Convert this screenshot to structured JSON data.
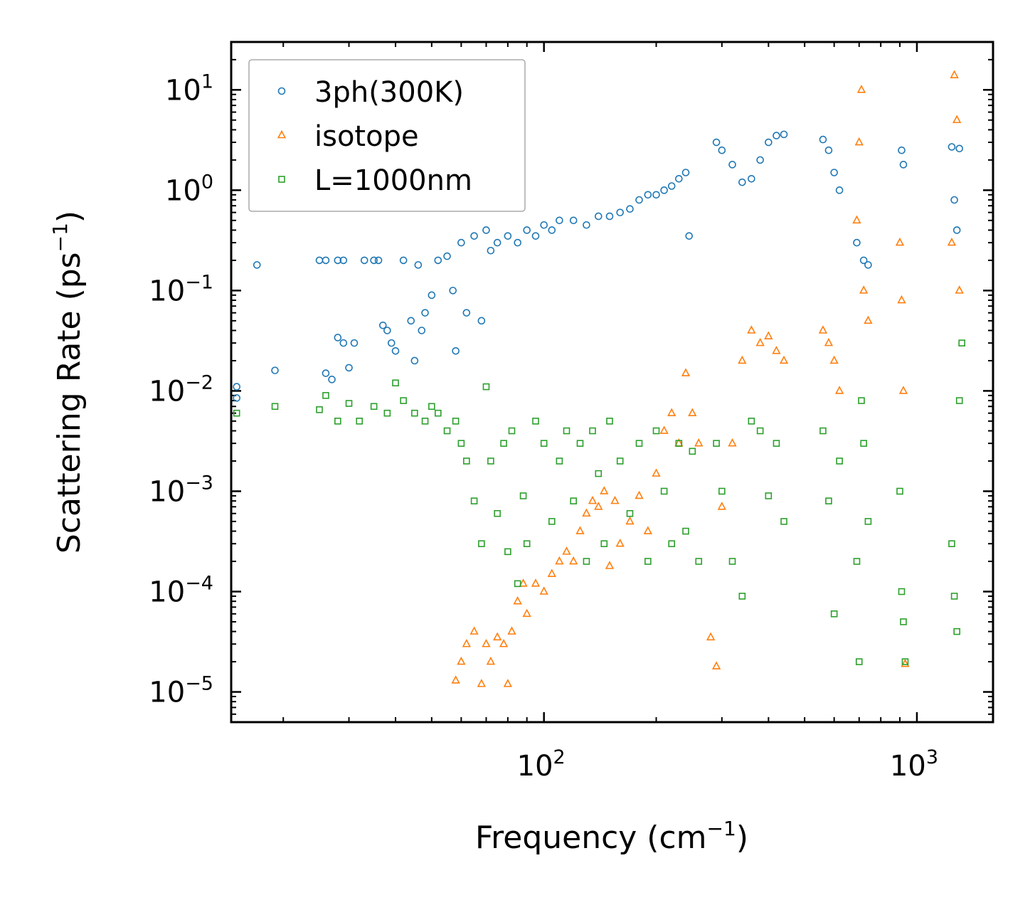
{
  "chart_data": {
    "type": "scatter",
    "title": "",
    "xlabel": "Frequency (cm",
    "xlabel_sup": "−1",
    "xlabel_tail": ")",
    "ylabel": "Scattering Rate (ps",
    "ylabel_sup": "−1",
    "ylabel_tail": ")",
    "xscale": "log",
    "yscale": "log",
    "xlim": [
      14.5,
      1600
    ],
    "ylim": [
      5e-06,
      30
    ],
    "x_ticks": [
      {
        "value": 100,
        "base": "10",
        "exp": "2"
      },
      {
        "value": 1000,
        "base": "10",
        "exp": "3"
      }
    ],
    "y_ticks": [
      {
        "value": 10,
        "base": "10",
        "exp": "1"
      },
      {
        "value": 1,
        "base": "10",
        "exp": "0"
      },
      {
        "value": 0.1,
        "base": "10",
        "exp": "−1"
      },
      {
        "value": 0.01,
        "base": "10",
        "exp": "−2"
      },
      {
        "value": 0.001,
        "base": "10",
        "exp": "−3"
      },
      {
        "value": 0.0001,
        "base": "10",
        "exp": "−4"
      },
      {
        "value": 1e-05,
        "base": "10",
        "exp": "−5"
      }
    ],
    "legend_position": "top-left",
    "grid": false,
    "series": [
      {
        "name": "3ph(300K)",
        "marker": "circle",
        "color": "#1f77b4",
        "points": [
          [
            15,
            0.011
          ],
          [
            15,
            0.0085
          ],
          [
            17,
            0.18
          ],
          [
            19,
            0.016
          ],
          [
            25,
            0.2
          ],
          [
            26,
            0.2
          ],
          [
            26,
            0.015
          ],
          [
            27,
            0.013
          ],
          [
            28,
            0.2
          ],
          [
            29,
            0.2
          ],
          [
            28,
            0.034
          ],
          [
            29,
            0.03
          ],
          [
            30,
            0.017
          ],
          [
            31,
            0.03
          ],
          [
            33,
            0.2
          ],
          [
            35,
            0.2
          ],
          [
            36,
            0.2
          ],
          [
            37,
            0.045
          ],
          [
            38,
            0.04
          ],
          [
            39,
            0.03
          ],
          [
            40,
            0.025
          ],
          [
            42,
            0.2
          ],
          [
            44,
            0.05
          ],
          [
            45,
            0.02
          ],
          [
            46,
            0.18
          ],
          [
            47,
            0.04
          ],
          [
            48,
            0.06
          ],
          [
            50,
            0.09
          ],
          [
            52,
            0.2
          ],
          [
            55,
            0.22
          ],
          [
            57,
            0.1
          ],
          [
            58,
            0.025
          ],
          [
            60,
            0.3
          ],
          [
            62,
            0.06
          ],
          [
            65,
            0.35
          ],
          [
            68,
            0.05
          ],
          [
            70,
            0.4
          ],
          [
            72,
            0.25
          ],
          [
            75,
            0.3
          ],
          [
            80,
            0.35
          ],
          [
            85,
            0.3
          ],
          [
            90,
            0.4
          ],
          [
            95,
            0.35
          ],
          [
            100,
            0.45
          ],
          [
            105,
            0.4
          ],
          [
            110,
            0.5
          ],
          [
            120,
            0.5
          ],
          [
            130,
            0.45
          ],
          [
            140,
            0.55
          ],
          [
            150,
            0.55
          ],
          [
            160,
            0.6
          ],
          [
            170,
            0.65
          ],
          [
            180,
            0.8
          ],
          [
            190,
            0.9
          ],
          [
            200,
            0.9
          ],
          [
            210,
            1.0
          ],
          [
            220,
            1.1
          ],
          [
            230,
            1.3
          ],
          [
            240,
            1.5
          ],
          [
            245,
            0.35
          ],
          [
            290,
            3.0
          ],
          [
            300,
            2.5
          ],
          [
            320,
            1.8
          ],
          [
            340,
            1.2
          ],
          [
            360,
            1.3
          ],
          [
            380,
            2.0
          ],
          [
            400,
            3.0
          ],
          [
            420,
            3.5
          ],
          [
            440,
            3.6
          ],
          [
            560,
            3.2
          ],
          [
            580,
            2.5
          ],
          [
            600,
            1.5
          ],
          [
            620,
            1.0
          ],
          [
            690,
            0.3
          ],
          [
            720,
            0.2
          ],
          [
            740,
            0.18
          ],
          [
            910,
            2.5
          ],
          [
            920,
            1.8
          ],
          [
            1240,
            2.7
          ],
          [
            1260,
            0.8
          ],
          [
            1280,
            0.4
          ],
          [
            1300,
            2.6
          ]
        ]
      },
      {
        "name": "isotope",
        "marker": "triangle",
        "color": "#ff7f0e",
        "points": [
          [
            58,
            1.3e-05
          ],
          [
            60,
            2e-05
          ],
          [
            62,
            3e-05
          ],
          [
            65,
            4e-05
          ],
          [
            68,
            1.2e-05
          ],
          [
            70,
            3e-05
          ],
          [
            72,
            2e-05
          ],
          [
            75,
            3.5e-05
          ],
          [
            78,
            3e-05
          ],
          [
            80,
            1.2e-05
          ],
          [
            82,
            4e-05
          ],
          [
            85,
            8e-05
          ],
          [
            88,
            0.00012
          ],
          [
            90,
            6e-05
          ],
          [
            95,
            0.00012
          ],
          [
            100,
            0.0001
          ],
          [
            105,
            0.00015
          ],
          [
            110,
            0.0002
          ],
          [
            115,
            0.00025
          ],
          [
            120,
            0.0002
          ],
          [
            125,
            0.0004
          ],
          [
            130,
            0.0006
          ],
          [
            135,
            0.0008
          ],
          [
            140,
            0.0007
          ],
          [
            145,
            0.001
          ],
          [
            150,
            0.00018
          ],
          [
            155,
            0.0008
          ],
          [
            160,
            0.0003
          ],
          [
            170,
            0.0005
          ],
          [
            180,
            0.0009
          ],
          [
            190,
            0.0004
          ],
          [
            200,
            0.0015
          ],
          [
            210,
            0.004
          ],
          [
            220,
            0.006
          ],
          [
            230,
            0.003
          ],
          [
            240,
            0.015
          ],
          [
            250,
            0.006
          ],
          [
            260,
            0.003
          ],
          [
            280,
            3.5e-05
          ],
          [
            290,
            1.8e-05
          ],
          [
            300,
            0.0007
          ],
          [
            320,
            0.003
          ],
          [
            340,
            0.02
          ],
          [
            360,
            0.04
          ],
          [
            380,
            0.03
          ],
          [
            400,
            0.035
          ],
          [
            420,
            0.025
          ],
          [
            440,
            0.02
          ],
          [
            560,
            0.04
          ],
          [
            580,
            0.03
          ],
          [
            600,
            0.02
          ],
          [
            620,
            0.01
          ],
          [
            690,
            0.5
          ],
          [
            700,
            3.0
          ],
          [
            710,
            10
          ],
          [
            720,
            0.1
          ],
          [
            740,
            0.05
          ],
          [
            900,
            0.3
          ],
          [
            910,
            0.08
          ],
          [
            920,
            0.01
          ],
          [
            930,
            1.9e-05
          ],
          [
            1240,
            0.3
          ],
          [
            1260,
            14
          ],
          [
            1280,
            5
          ],
          [
            1300,
            0.1
          ]
        ]
      },
      {
        "name": "L=1000nm",
        "marker": "square",
        "color": "#2ca02c",
        "points": [
          [
            15,
            0.006
          ],
          [
            19,
            0.007
          ],
          [
            25,
            0.0065
          ],
          [
            26,
            0.009
          ],
          [
            28,
            0.005
          ],
          [
            30,
            0.0075
          ],
          [
            32,
            0.005
          ],
          [
            35,
            0.007
          ],
          [
            38,
            0.006
          ],
          [
            40,
            0.012
          ],
          [
            42,
            0.008
          ],
          [
            45,
            0.006
          ],
          [
            48,
            0.005
          ],
          [
            50,
            0.007
          ],
          [
            52,
            0.006
          ],
          [
            55,
            0.004
          ],
          [
            58,
            0.005
          ],
          [
            60,
            0.003
          ],
          [
            62,
            0.002
          ],
          [
            65,
            0.0008
          ],
          [
            68,
            0.0003
          ],
          [
            70,
            0.011
          ],
          [
            72,
            0.002
          ],
          [
            75,
            0.0006
          ],
          [
            78,
            0.003
          ],
          [
            80,
            0.00025
          ],
          [
            82,
            0.004
          ],
          [
            85,
            0.00012
          ],
          [
            88,
            0.0009
          ],
          [
            90,
            0.0003
          ],
          [
            95,
            0.005
          ],
          [
            100,
            0.003
          ],
          [
            105,
            0.0005
          ],
          [
            110,
            0.002
          ],
          [
            115,
            0.004
          ],
          [
            120,
            0.0008
          ],
          [
            125,
            0.003
          ],
          [
            130,
            0.0002
          ],
          [
            135,
            0.004
          ],
          [
            140,
            0.0015
          ],
          [
            145,
            0.0003
          ],
          [
            150,
            0.005
          ],
          [
            160,
            0.002
          ],
          [
            170,
            0.0006
          ],
          [
            180,
            0.003
          ],
          [
            190,
            0.0002
          ],
          [
            200,
            0.004
          ],
          [
            210,
            0.001
          ],
          [
            220,
            0.0003
          ],
          [
            230,
            0.003
          ],
          [
            240,
            0.0004
          ],
          [
            250,
            0.0025
          ],
          [
            260,
            0.0002
          ],
          [
            290,
            0.003
          ],
          [
            300,
            0.001
          ],
          [
            320,
            0.0002
          ],
          [
            340,
            9e-05
          ],
          [
            360,
            0.005
          ],
          [
            380,
            0.004
          ],
          [
            400,
            0.0009
          ],
          [
            420,
            0.003
          ],
          [
            440,
            0.0005
          ],
          [
            560,
            0.004
          ],
          [
            580,
            0.0008
          ],
          [
            600,
            6e-05
          ],
          [
            620,
            0.002
          ],
          [
            690,
            0.0002
          ],
          [
            700,
            2e-05
          ],
          [
            710,
            0.008
          ],
          [
            720,
            0.003
          ],
          [
            740,
            0.0005
          ],
          [
            900,
            0.001
          ],
          [
            910,
            0.0001
          ],
          [
            920,
            5e-05
          ],
          [
            930,
            2e-05
          ],
          [
            1240,
            0.0003
          ],
          [
            1260,
            9e-05
          ],
          [
            1280,
            4e-05
          ],
          [
            1300,
            0.008
          ],
          [
            1320,
            0.03
          ]
        ]
      }
    ]
  }
}
